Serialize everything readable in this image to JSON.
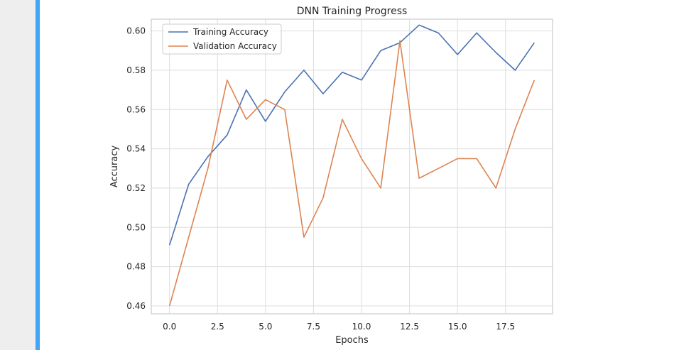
{
  "colors": {
    "cell_accent": "#42a5f5",
    "training_line": "#4c72b0",
    "validation_line": "#dd8452",
    "grid": "#dddddd",
    "frame": "#cccccc"
  },
  "chart_data": {
    "type": "line",
    "title": "DNN Training Progress",
    "xlabel": "Epochs",
    "ylabel": "Accuracy",
    "xlim": [
      -0.95,
      19.95
    ],
    "ylim": [
      0.456,
      0.606
    ],
    "x_ticks": [
      0.0,
      2.5,
      5.0,
      7.5,
      10.0,
      12.5,
      15.0,
      17.5
    ],
    "x_tick_labels": [
      "0.0",
      "2.5",
      "5.0",
      "7.5",
      "10.0",
      "12.5",
      "15.0",
      "17.5"
    ],
    "y_ticks": [
      0.46,
      0.48,
      0.5,
      0.52,
      0.54,
      0.56,
      0.58,
      0.6
    ],
    "y_tick_labels": [
      "0.46",
      "0.48",
      "0.50",
      "0.52",
      "0.54",
      "0.56",
      "0.58",
      "0.60"
    ],
    "grid": true,
    "legend_position": "upper-left",
    "x": [
      0,
      1,
      2,
      3,
      4,
      5,
      6,
      7,
      8,
      9,
      10,
      11,
      12,
      13,
      14,
      15,
      16,
      17,
      18,
      19
    ],
    "series": [
      {
        "name": "Training Accuracy",
        "color": "#4c72b0",
        "values": [
          0.491,
          0.522,
          0.536,
          0.547,
          0.57,
          0.554,
          0.569,
          0.58,
          0.568,
          0.579,
          0.575,
          0.59,
          0.594,
          0.603,
          0.599,
          0.588,
          0.599,
          0.589,
          0.58,
          0.594
        ]
      },
      {
        "name": "Validation Accuracy",
        "color": "#dd8452",
        "values": [
          0.46,
          0.495,
          0.53,
          0.575,
          0.555,
          0.565,
          0.56,
          0.495,
          0.515,
          0.555,
          0.535,
          0.52,
          0.595,
          0.525,
          0.53,
          0.535,
          0.535,
          0.52,
          0.55,
          0.575
        ]
      }
    ]
  }
}
